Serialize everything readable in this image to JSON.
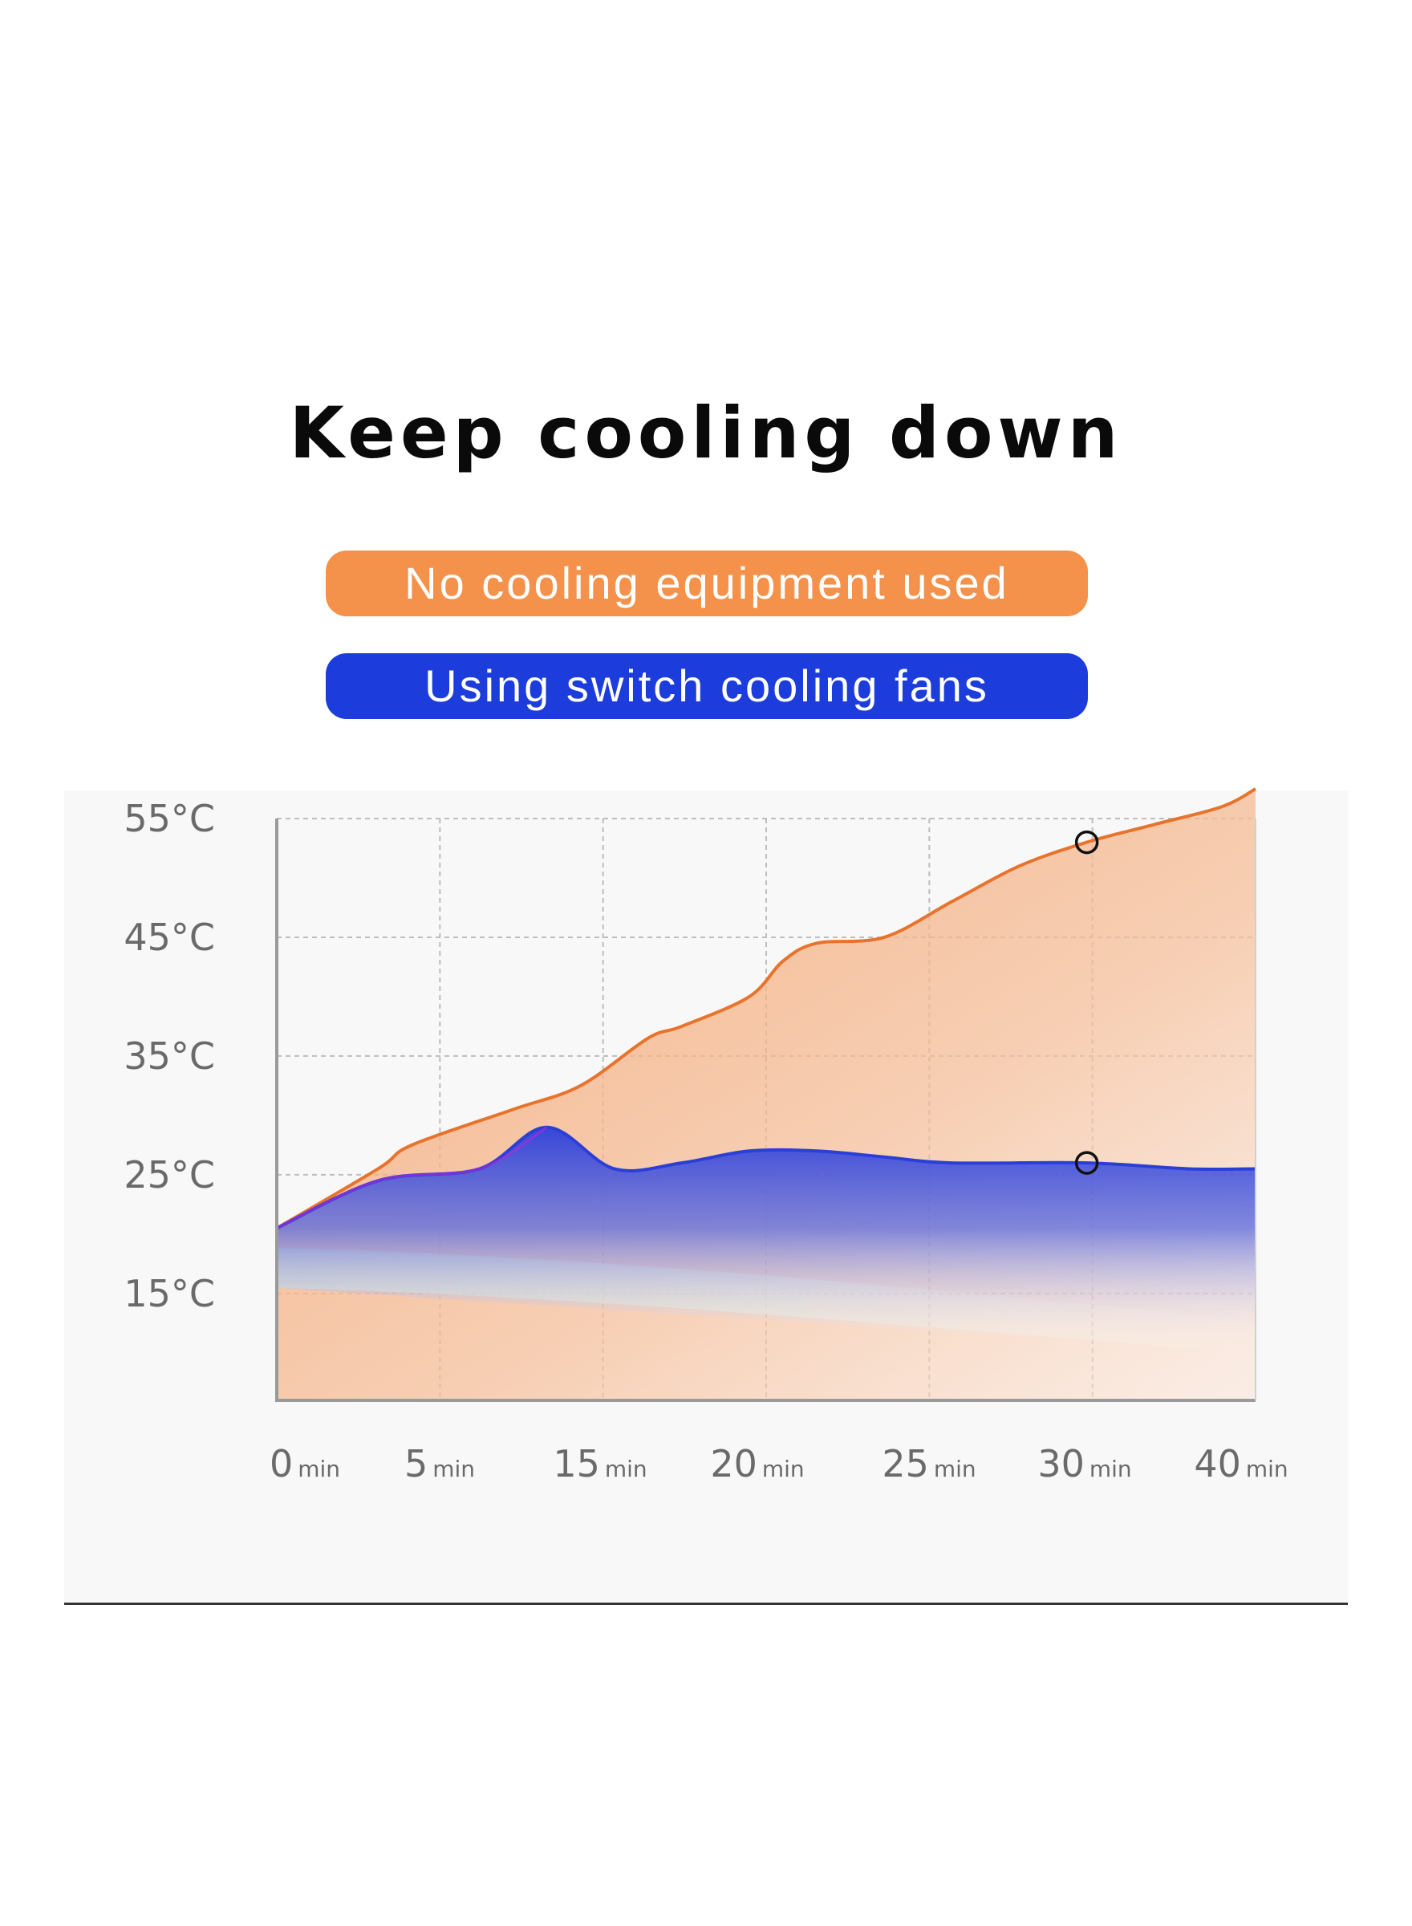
{
  "title": "Keep cooling down",
  "legend": {
    "no_cooling": "No cooling equipment used",
    "with_fans": "Using switch cooling fans"
  },
  "chart_data": {
    "type": "area",
    "title": "Keep cooling down",
    "xlabel": "",
    "ylabel": "",
    "x": [
      0,
      5,
      15,
      20,
      25,
      30,
      40
    ],
    "x_tick_labels": [
      {
        "num": "0",
        "unit": "min"
      },
      {
        "num": "5",
        "unit": "min"
      },
      {
        "num": "15",
        "unit": "min"
      },
      {
        "num": "20",
        "unit": "min"
      },
      {
        "num": "25",
        "unit": "min"
      },
      {
        "num": "30",
        "unit": "min"
      },
      {
        "num": "40",
        "unit": "min"
      }
    ],
    "y_ticks": [
      15,
      25,
      35,
      45,
      55
    ],
    "y_tick_labels": [
      "15°C",
      "25°C",
      "35°C",
      "45°C",
      "55°C"
    ],
    "ylim": [
      6,
      55
    ],
    "grid": true,
    "series": [
      {
        "name": "No cooling equipment used",
        "color": "#e8732c",
        "points": [
          [
            0,
            20.5
          ],
          [
            3,
            25.5
          ],
          [
            4,
            27.5
          ],
          [
            7,
            30.5
          ],
          [
            9,
            32.5
          ],
          [
            11,
            36.5
          ],
          [
            12,
            37.5
          ],
          [
            14,
            40
          ],
          [
            15,
            43
          ],
          [
            16,
            44.5
          ],
          [
            18,
            45
          ],
          [
            20,
            48
          ],
          [
            22,
            51
          ],
          [
            24,
            53
          ],
          [
            26,
            54.5
          ],
          [
            28,
            56
          ],
          [
            29,
            57.5
          ]
        ],
        "marker": {
          "x": 24,
          "y": 53
        }
      },
      {
        "name": "Using switch cooling fans",
        "color": "#2b3fd6",
        "points": [
          [
            0,
            20.5
          ],
          [
            3,
            24.5
          ],
          [
            6,
            25.5
          ],
          [
            8,
            29
          ],
          [
            10,
            25.5
          ],
          [
            12,
            26
          ],
          [
            14,
            27
          ],
          [
            16,
            27
          ],
          [
            18,
            26.5
          ],
          [
            20,
            26
          ],
          [
            24,
            26
          ],
          [
            27,
            25.5
          ],
          [
            29,
            25.5
          ]
        ],
        "marker": {
          "x": 24,
          "y": 26
        }
      }
    ]
  }
}
